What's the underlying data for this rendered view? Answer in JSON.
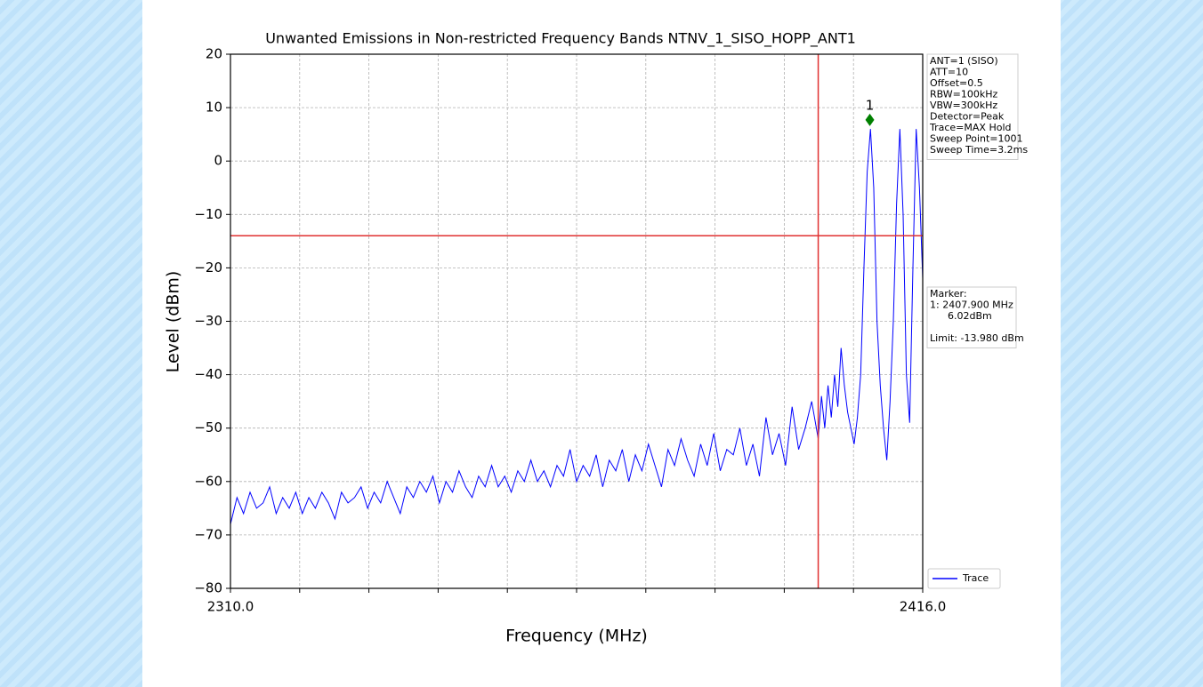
{
  "chart_data": {
    "type": "line",
    "title": "Unwanted Emissions in Non-restricted Frequency Bands NTNV_1_SISO_HOPP_ANT1",
    "xlabel": "Frequency (MHz)",
    "ylabel": "Level (dBm)",
    "xlim": [
      2310,
      2416
    ],
    "ylim": [
      -80,
      20
    ],
    "xticks": [
      {
        "value": 2310,
        "label": "2310.0"
      },
      {
        "value": 2320.6
      },
      {
        "value": 2331.2
      },
      {
        "value": 2341.8
      },
      {
        "value": 2352.4
      },
      {
        "value": 2363
      },
      {
        "value": 2373.6
      },
      {
        "value": 2384.2
      },
      {
        "value": 2394.8
      },
      {
        "value": 2405.4
      },
      {
        "value": 2416,
        "label": "2416.0"
      }
    ],
    "yticks": [
      20,
      10,
      0,
      {
        "value": -10,
        "label": "−10"
      },
      {
        "value": -20,
        "label": "−20"
      },
      {
        "value": -30,
        "label": "−30"
      },
      {
        "value": -40,
        "label": "−40"
      },
      {
        "value": -50,
        "label": "−50"
      },
      {
        "value": -60,
        "label": "−60"
      },
      {
        "value": -70,
        "label": "−70"
      },
      {
        "value": -80,
        "label": "−80"
      }
    ],
    "grid": true,
    "legend": "lower right",
    "series": [
      {
        "name": "Trace",
        "color": "#0000ff",
        "x": [
          2310,
          2311,
          2312,
          2313,
          2314,
          2315,
          2316,
          2317,
          2318,
          2319,
          2320,
          2321,
          2322,
          2323,
          2324,
          2325,
          2326,
          2327,
          2328,
          2329,
          2330,
          2331,
          2332,
          2333,
          2334,
          2335,
          2336,
          2337,
          2338,
          2339,
          2340,
          2341,
          2342,
          2343,
          2344,
          2345,
          2346,
          2347,
          2348,
          2349,
          2350,
          2351,
          2352,
          2353,
          2354,
          2355,
          2356,
          2357,
          2358,
          2359,
          2360,
          2361,
          2362,
          2363,
          2364,
          2365,
          2366,
          2367,
          2368,
          2369,
          2370,
          2371,
          2372,
          2373,
          2374,
          2375,
          2376,
          2377,
          2378,
          2379,
          2380,
          2381,
          2382,
          2383,
          2384,
          2385,
          2386,
          2387,
          2388,
          2389,
          2390,
          2391,
          2392,
          2393,
          2394,
          2395,
          2396,
          2397,
          2398,
          2399,
          2400,
          2400.5,
          2401,
          2401.5,
          2402,
          2402.5,
          2403,
          2403.5,
          2404,
          2404.5,
          2405,
          2405.5,
          2406,
          2406.5,
          2407,
          2407.5,
          2408,
          2408.5,
          2409,
          2409.5,
          2410,
          2410.5,
          2411,
          2411.5,
          2412,
          2412.5,
          2413,
          2413.5,
          2414,
          2414.5,
          2415,
          2415.5,
          2416
        ],
        "values": [
          -68,
          -63,
          -66,
          -62,
          -65,
          -64,
          -61,
          -66,
          -63,
          -65,
          -62,
          -66,
          -63,
          -65,
          -62,
          -64,
          -67,
          -62,
          -64,
          -63,
          -61,
          -65,
          -62,
          -64,
          -60,
          -63,
          -66,
          -61,
          -63,
          -60,
          -62,
          -59,
          -64,
          -60,
          -62,
          -58,
          -61,
          -63,
          -59,
          -61,
          -57,
          -61,
          -59,
          -62,
          -58,
          -60,
          -56,
          -60,
          -58,
          -61,
          -57,
          -59,
          -54,
          -60,
          -57,
          -59,
          -55,
          -61,
          -56,
          -58,
          -54,
          -60,
          -55,
          -58,
          -53,
          -57,
          -61,
          -54,
          -57,
          -52,
          -56,
          -59,
          -53,
          -57,
          -51,
          -58,
          -54,
          -55,
          -50,
          -57,
          -53,
          -59,
          -48,
          -55,
          -51,
          -57,
          -46,
          -54,
          -50,
          -45,
          -52,
          -44,
          -50,
          -42,
          -48,
          -40,
          -46,
          -35,
          -42,
          -47,
          -50,
          -53,
          -48,
          -40,
          -20,
          -2,
          6,
          -5,
          -30,
          -42,
          -50,
          -56,
          -45,
          -30,
          -8,
          6,
          -10,
          -40,
          -49,
          -20,
          6,
          -5,
          -22
        ]
      }
    ],
    "hlines": [
      {
        "value": -13.98,
        "color": "#e03030"
      }
    ],
    "vlines": [
      {
        "value": 2400,
        "color": "#e03030"
      }
    ],
    "marker": {
      "x": 2407.9,
      "y": 7.7,
      "label": "1",
      "color": "#008000"
    },
    "info_box": [
      "ANT=1 (SISO)",
      "ATT=10",
      "Offset=0.5",
      "RBW=100kHz",
      "VBW=300kHz",
      "Detector=Peak",
      "Trace=MAX Hold",
      "Sweep Point=1001",
      "Sweep Time=3.2ms"
    ],
    "marker_box": [
      "Marker:",
      "1: 2407.900 MHz",
      "6.02dBm",
      "Limit: -13.980 dBm"
    ]
  }
}
